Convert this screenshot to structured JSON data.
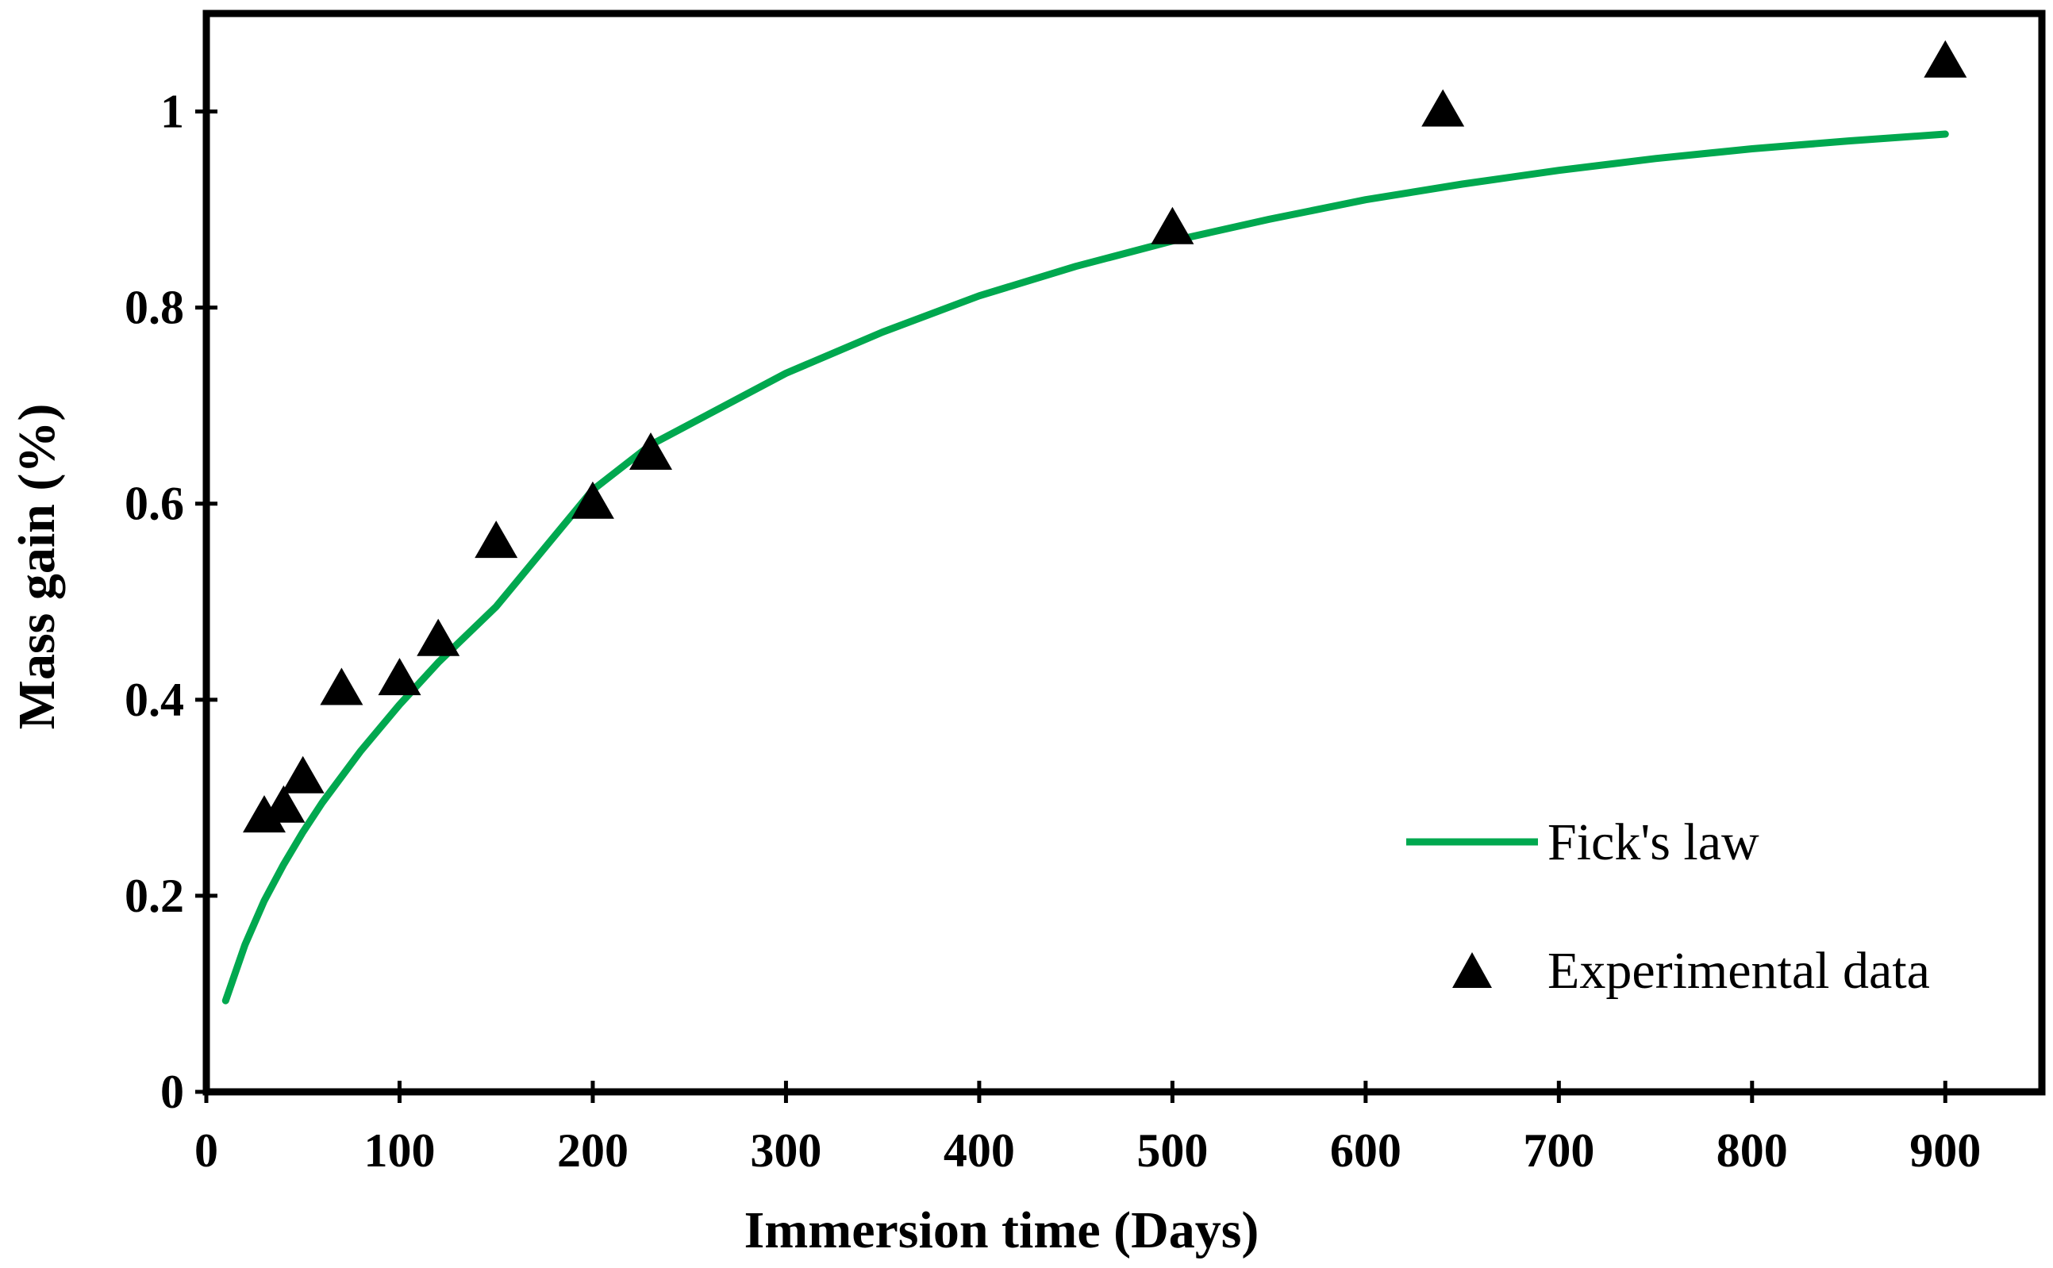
{
  "chart_data": {
    "type": "scatter",
    "title": "",
    "xlabel": "Immersion time (Days)",
    "ylabel": "Mass gain (%)",
    "xlim": [
      0,
      950
    ],
    "ylim": [
      0,
      1.1
    ],
    "xticks": [
      0,
      100,
      200,
      300,
      400,
      500,
      600,
      700,
      800,
      900
    ],
    "xtick_labels": [
      "0",
      "100",
      "200",
      "300",
      "400",
      "500",
      "600",
      "700",
      "800",
      "900"
    ],
    "yticks": [
      0,
      0.2,
      0.4,
      0.6,
      0.8,
      1
    ],
    "ytick_labels": [
      "0",
      "0.2",
      "0.4",
      "0.6",
      "0.8",
      "1"
    ],
    "grid": false,
    "legend_position": "bottom-right",
    "series": [
      {
        "name": "Fick's law",
        "kind": "line",
        "color": "#00a84f",
        "x": [
          10,
          20,
          30,
          40,
          50,
          60,
          80,
          100,
          120,
          150,
          200,
          230,
          300,
          350,
          400,
          450,
          500,
          550,
          600,
          650,
          700,
          750,
          800,
          850,
          900
        ],
        "y": [
          0.093,
          0.15,
          0.195,
          0.232,
          0.265,
          0.295,
          0.348,
          0.395,
          0.438,
          0.495,
          0.614,
          0.66,
          0.733,
          0.775,
          0.812,
          0.842,
          0.868,
          0.89,
          0.91,
          0.926,
          0.94,
          0.952,
          0.962,
          0.97,
          0.977
        ]
      },
      {
        "name": "Experimental data",
        "kind": "marker",
        "marker": "triangle",
        "color": "#000000",
        "x": [
          30,
          40,
          50,
          70,
          100,
          120,
          150,
          200,
          230,
          500,
          640,
          900
        ],
        "y": [
          0.28,
          0.29,
          0.32,
          0.41,
          0.42,
          0.46,
          0.56,
          0.6,
          0.65,
          0.88,
          1.0,
          1.05
        ]
      }
    ]
  }
}
